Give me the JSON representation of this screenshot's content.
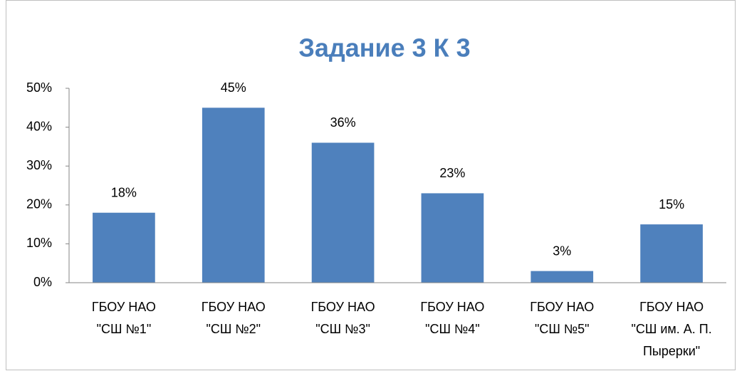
{
  "chart_data": {
    "type": "bar",
    "title": "Задание 3 К 3",
    "categories": [
      "ГБОУ НАО \"СШ №1\"",
      "ГБОУ НАО \"СШ №2\"",
      "ГБОУ НАО \"СШ №3\"",
      "ГБОУ НАО \"СШ №4\"",
      "ГБОУ НАО \"СШ №5\"",
      "ГБОУ НАО \"СШ им. А. П. Пырерки\""
    ],
    "values": [
      18,
      45,
      36,
      23,
      3,
      15
    ],
    "value_labels": [
      "18%",
      "45%",
      "36%",
      "23%",
      "3%",
      "15%"
    ],
    "color": "#4f81bd",
    "ylim": [
      0,
      50
    ],
    "yticks": [
      {
        "value": 0,
        "label": "0%"
      },
      {
        "value": 10,
        "label": "10%"
      },
      {
        "value": 20,
        "label": "20%"
      },
      {
        "value": 30,
        "label": "30%"
      },
      {
        "value": 40,
        "label": "40%"
      },
      {
        "value": 50,
        "label": "50%"
      }
    ],
    "grid": false
  }
}
